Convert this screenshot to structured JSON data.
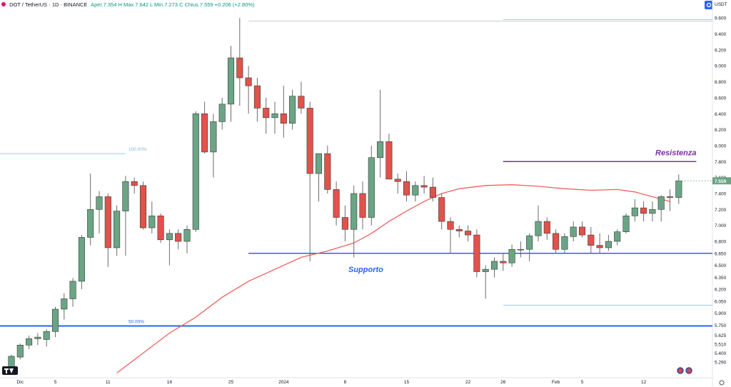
{
  "header": {
    "symbol": "DOT / TetherUS · 1D · BINANCE",
    "ohlc": "Aper.7.354  H  Max.7.642  L  Min.7.273  C  Chius.7.559  +0.206 (+2.80%)",
    "currency": "USDT"
  },
  "chart_data": {
    "type": "candlestick",
    "title": "",
    "xlabel": "",
    "ylabel": "",
    "ylim": [
      5.1,
      9.7
    ],
    "y_ticks": [
      5.29,
      5.4,
      5.51,
      5.625,
      5.75,
      5.9,
      6.05,
      6.2,
      6.35,
      6.5,
      6.65,
      6.8,
      7.0,
      7.2,
      7.4,
      7.6,
      7.8,
      8.0,
      8.2,
      8.4,
      8.6,
      8.8,
      9.0,
      9.2,
      9.4,
      9.6
    ],
    "x_ticks": [
      {
        "label": "Dic",
        "i": 1
      },
      {
        "label": "5",
        "i": 5
      },
      {
        "label": "11",
        "i": 11
      },
      {
        "label": "18",
        "i": 18
      },
      {
        "label": "25",
        "i": 25
      },
      {
        "label": "2024",
        "i": 31
      },
      {
        "label": "8",
        "i": 38
      },
      {
        "label": "15",
        "i": 45
      },
      {
        "label": "22",
        "i": 52
      },
      {
        "label": "26",
        "i": 56
      },
      {
        "label": "Feb",
        "i": 62
      },
      {
        "label": "5",
        "i": 65
      },
      {
        "label": "12",
        "i": 72
      }
    ],
    "last_price": 7.559,
    "candles": [
      {
        "o": 5.22,
        "h": 5.38,
        "l": 5.15,
        "c": 5.36
      },
      {
        "o": 5.35,
        "h": 5.52,
        "l": 5.32,
        "c": 5.5
      },
      {
        "o": 5.5,
        "h": 5.62,
        "l": 5.45,
        "c": 5.58
      },
      {
        "o": 5.58,
        "h": 5.65,
        "l": 5.5,
        "c": 5.6
      },
      {
        "o": 5.57,
        "h": 5.7,
        "l": 5.48,
        "c": 5.67
      },
      {
        "o": 5.67,
        "h": 5.98,
        "l": 5.6,
        "c": 5.95
      },
      {
        "o": 5.95,
        "h": 6.15,
        "l": 5.82,
        "c": 6.08
      },
      {
        "o": 6.08,
        "h": 6.34,
        "l": 5.98,
        "c": 6.3
      },
      {
        "o": 6.3,
        "h": 6.88,
        "l": 6.2,
        "c": 6.85
      },
      {
        "o": 6.85,
        "h": 7.65,
        "l": 6.75,
        "c": 7.2
      },
      {
        "o": 7.2,
        "h": 7.43,
        "l": 6.9,
        "c": 7.36
      },
      {
        "o": 7.36,
        "h": 7.4,
        "l": 6.48,
        "c": 6.72
      },
      {
        "o": 6.72,
        "h": 7.25,
        "l": 6.62,
        "c": 7.18
      },
      {
        "o": 7.18,
        "h": 7.62,
        "l": 6.62,
        "c": 7.55
      },
      {
        "o": 7.55,
        "h": 7.6,
        "l": 7.4,
        "c": 7.5
      },
      {
        "o": 7.5,
        "h": 7.55,
        "l": 6.95,
        "c": 6.97
      },
      {
        "o": 6.97,
        "h": 7.3,
        "l": 6.9,
        "c": 7.12
      },
      {
        "o": 7.12,
        "h": 7.15,
        "l": 6.78,
        "c": 6.82
      },
      {
        "o": 6.82,
        "h": 6.95,
        "l": 6.5,
        "c": 6.9
      },
      {
        "o": 6.9,
        "h": 6.95,
        "l": 6.7,
        "c": 6.8
      },
      {
        "o": 6.8,
        "h": 7.0,
        "l": 6.65,
        "c": 6.95
      },
      {
        "o": 6.95,
        "h": 8.43,
        "l": 6.92,
        "c": 8.4
      },
      {
        "o": 8.4,
        "h": 8.55,
        "l": 7.9,
        "c": 7.92
      },
      {
        "o": 7.92,
        "h": 8.4,
        "l": 7.6,
        "c": 8.3
      },
      {
        "o": 8.3,
        "h": 8.6,
        "l": 8.2,
        "c": 8.52
      },
      {
        "o": 8.52,
        "h": 9.25,
        "l": 8.3,
        "c": 9.1
      },
      {
        "o": 9.1,
        "h": 9.6,
        "l": 8.5,
        "c": 8.85
      },
      {
        "o": 8.85,
        "h": 9.0,
        "l": 8.4,
        "c": 8.75
      },
      {
        "o": 8.75,
        "h": 8.85,
        "l": 8.3,
        "c": 8.47
      },
      {
        "o": 8.47,
        "h": 8.6,
        "l": 8.15,
        "c": 8.35
      },
      {
        "o": 8.35,
        "h": 8.55,
        "l": 8.15,
        "c": 8.4
      },
      {
        "o": 8.4,
        "h": 8.75,
        "l": 8.1,
        "c": 8.28
      },
      {
        "o": 8.28,
        "h": 8.7,
        "l": 8.2,
        "c": 8.62
      },
      {
        "o": 8.62,
        "h": 8.8,
        "l": 8.4,
        "c": 8.47
      },
      {
        "o": 8.47,
        "h": 8.55,
        "l": 6.55,
        "c": 7.65
      },
      {
        "o": 7.65,
        "h": 7.9,
        "l": 7.3,
        "c": 7.9
      },
      {
        "o": 7.9,
        "h": 8.0,
        "l": 7.4,
        "c": 7.45
      },
      {
        "o": 7.45,
        "h": 7.55,
        "l": 7.0,
        "c": 7.1
      },
      {
        "o": 7.1,
        "h": 7.25,
        "l": 6.8,
        "c": 6.95
      },
      {
        "o": 6.95,
        "h": 7.5,
        "l": 6.6,
        "c": 7.4
      },
      {
        "o": 7.4,
        "h": 7.55,
        "l": 6.95,
        "c": 7.1
      },
      {
        "o": 7.1,
        "h": 8.0,
        "l": 7.0,
        "c": 7.85
      },
      {
        "o": 7.85,
        "h": 8.7,
        "l": 7.6,
        "c": 8.05
      },
      {
        "o": 8.05,
        "h": 8.15,
        "l": 7.6,
        "c": 7.58
      },
      {
        "o": 7.58,
        "h": 7.65,
        "l": 7.4,
        "c": 7.55
      },
      {
        "o": 7.55,
        "h": 7.68,
        "l": 7.3,
        "c": 7.38
      },
      {
        "o": 7.38,
        "h": 7.55,
        "l": 7.3,
        "c": 7.5
      },
      {
        "o": 7.5,
        "h": 7.62,
        "l": 7.4,
        "c": 7.48
      },
      {
        "o": 7.48,
        "h": 7.6,
        "l": 7.3,
        "c": 7.35
      },
      {
        "o": 7.35,
        "h": 7.4,
        "l": 6.95,
        "c": 7.05
      },
      {
        "o": 7.05,
        "h": 7.1,
        "l": 6.65,
        "c": 6.95
      },
      {
        "o": 6.95,
        "h": 7.0,
        "l": 6.85,
        "c": 6.93
      },
      {
        "o": 6.93,
        "h": 7.0,
        "l": 6.8,
        "c": 6.88
      },
      {
        "o": 6.88,
        "h": 6.95,
        "l": 6.35,
        "c": 6.42
      },
      {
        "o": 6.42,
        "h": 6.5,
        "l": 6.08,
        "c": 6.45
      },
      {
        "o": 6.45,
        "h": 6.6,
        "l": 6.35,
        "c": 6.55
      },
      {
        "o": 6.55,
        "h": 6.65,
        "l": 6.43,
        "c": 6.53
      },
      {
        "o": 6.53,
        "h": 6.76,
        "l": 6.48,
        "c": 6.7
      },
      {
        "o": 6.7,
        "h": 6.8,
        "l": 6.6,
        "c": 6.7
      },
      {
        "o": 6.7,
        "h": 6.9,
        "l": 6.55,
        "c": 6.87
      },
      {
        "o": 6.87,
        "h": 7.25,
        "l": 6.8,
        "c": 7.05
      },
      {
        "o": 7.05,
        "h": 7.1,
        "l": 6.82,
        "c": 6.9
      },
      {
        "o": 6.9,
        "h": 6.95,
        "l": 6.65,
        "c": 6.7
      },
      {
        "o": 6.7,
        "h": 6.9,
        "l": 6.65,
        "c": 6.86
      },
      {
        "o": 6.86,
        "h": 7.05,
        "l": 6.8,
        "c": 6.98
      },
      {
        "o": 6.98,
        "h": 7.05,
        "l": 6.85,
        "c": 6.88
      },
      {
        "o": 6.88,
        "h": 6.98,
        "l": 6.65,
        "c": 6.75
      },
      {
        "o": 6.75,
        "h": 6.9,
        "l": 6.65,
        "c": 6.72
      },
      {
        "o": 6.72,
        "h": 6.88,
        "l": 6.68,
        "c": 6.8
      },
      {
        "o": 6.8,
        "h": 6.95,
        "l": 6.75,
        "c": 6.92
      },
      {
        "o": 6.92,
        "h": 7.15,
        "l": 6.9,
        "c": 7.12
      },
      {
        "o": 7.12,
        "h": 7.33,
        "l": 7.05,
        "c": 7.22
      },
      {
        "o": 7.22,
        "h": 7.3,
        "l": 7.05,
        "c": 7.15
      },
      {
        "o": 7.15,
        "h": 7.3,
        "l": 7.05,
        "c": 7.2
      },
      {
        "o": 7.2,
        "h": 7.38,
        "l": 7.05,
        "c": 7.36
      },
      {
        "o": 7.36,
        "h": 7.45,
        "l": 7.18,
        "c": 7.35
      },
      {
        "o": 7.35,
        "h": 7.64,
        "l": 7.27,
        "c": 7.559
      }
    ],
    "ma": [
      {
        "i": 12,
        "v": 5.15
      },
      {
        "i": 15,
        "v": 5.4
      },
      {
        "i": 18,
        "v": 5.65
      },
      {
        "i": 21,
        "v": 5.85
      },
      {
        "i": 24,
        "v": 6.1
      },
      {
        "i": 27,
        "v": 6.3
      },
      {
        "i": 30,
        "v": 6.45
      },
      {
        "i": 33,
        "v": 6.6
      },
      {
        "i": 36,
        "v": 6.68
      },
      {
        "i": 39,
        "v": 6.78
      },
      {
        "i": 41,
        "v": 6.9
      },
      {
        "i": 43,
        "v": 7.05
      },
      {
        "i": 45,
        "v": 7.18
      },
      {
        "i": 47,
        "v": 7.3
      },
      {
        "i": 49,
        "v": 7.4
      },
      {
        "i": 51,
        "v": 7.46
      },
      {
        "i": 54,
        "v": 7.5
      },
      {
        "i": 57,
        "v": 7.51
      },
      {
        "i": 60,
        "v": 7.49
      },
      {
        "i": 63,
        "v": 7.46
      },
      {
        "i": 66,
        "v": 7.44
      },
      {
        "i": 69,
        "v": 7.45
      },
      {
        "i": 71,
        "v": 7.42
      },
      {
        "i": 73,
        "v": 7.36
      },
      {
        "i": 75,
        "v": 7.3
      }
    ],
    "annotations": {
      "resistance": {
        "label": "Resistenza",
        "value": 7.8,
        "from_i": 56,
        "to_i": 78,
        "color": "#7b2fa3"
      },
      "support": {
        "label": "Supporto",
        "value": 6.65,
        "from_i": 27,
        "to_i": 81,
        "color": "#2962ff"
      },
      "fib_100": {
        "label": "100.00%",
        "value": 7.9,
        "from_i": -1,
        "to_i": 13,
        "color": "#80d8e6"
      },
      "fib_50": {
        "label": "50.00%",
        "value": 5.74,
        "from_i": -1,
        "to_i": 81,
        "color": "#2962ff"
      },
      "top_line": {
        "value": 9.56,
        "from_i": 27,
        "to_i": 81,
        "color": "#cccccc"
      },
      "cyan_top": {
        "value": 9.58,
        "from_i": 56,
        "to_i": 81,
        "color": "#80d8e6"
      },
      "cyan_low": {
        "value": 6.0,
        "from_i": 56,
        "to_i": 81,
        "color": "#80d8e6"
      }
    },
    "colors": {
      "up": "#6aa585",
      "down": "#e0524a",
      "ma": "#f06060"
    }
  }
}
